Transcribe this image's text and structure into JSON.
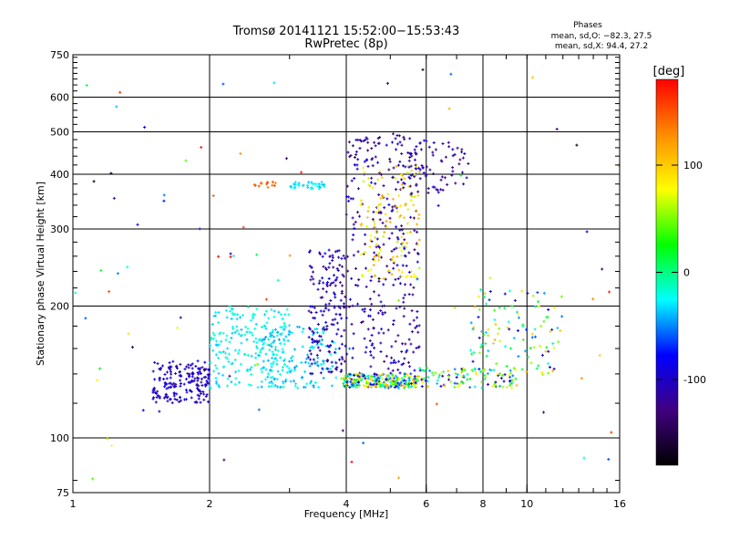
{
  "chart_data": {
    "type": "scatter",
    "title": "Tromsø 20141121 15:52:00−15:53:43",
    "subtitle": "RwPretec (8p)",
    "xlabel": "Frequency [MHz]",
    "ylabel": "Stationary phase Virtual Height [km]",
    "x_scale": "log",
    "y_scale": "log",
    "xlim": [
      1,
      16
    ],
    "ylim": [
      75,
      750
    ],
    "x_ticks": [
      1,
      2,
      4,
      6,
      8,
      10,
      16
    ],
    "y_ticks": [
      75,
      100,
      200,
      300,
      400,
      500,
      600,
      750
    ],
    "grid": true,
    "phase_title": "Phases",
    "phase_line_o": "mean, sd,O: −82.3, 27.5",
    "phase_line_x": "mean, sd,X:  94.4, 27.2",
    "colorbar": {
      "label": "[deg]",
      "range": [
        -180,
        180
      ],
      "ticks": [
        100,
        0,
        -100
      ],
      "colors": [
        "#ff0000",
        "#ff8c00",
        "#ffff00",
        "#00ff00",
        "#00ffff",
        "#0000ff",
        "#400080",
        "#000000"
      ]
    },
    "clusters": [
      {
        "x": [
          1.5,
          2.0
        ],
        "y": [
          120,
          150
        ],
        "n": 180,
        "phase": [
          -120,
          -80
        ]
      },
      {
        "x": [
          2.0,
          3.0
        ],
        "y": [
          130,
          200
        ],
        "n": 220,
        "phase": [
          -40,
          -10
        ]
      },
      {
        "x": [
          2.6,
          3.8
        ],
        "y": [
          130,
          180
        ],
        "n": 140,
        "phase": [
          -50,
          -20
        ]
      },
      {
        "x": [
          3.3,
          4.0
        ],
        "y": [
          140,
          270
        ],
        "n": 170,
        "phase": [
          -130,
          -80
        ]
      },
      {
        "x": [
          4.0,
          5.8
        ],
        "y": [
          140,
          500
        ],
        "n": 320,
        "phase": [
          -140,
          -80
        ]
      },
      {
        "x": [
          3.9,
          5.8
        ],
        "y": [
          130,
          140
        ],
        "n": 260,
        "phase": [
          -110,
          120
        ]
      },
      {
        "x": [
          4.3,
          5.8
        ],
        "y": [
          230,
          420
        ],
        "n": 130,
        "phase": [
          60,
          120
        ]
      },
      {
        "x": [
          5.5,
          7.5
        ],
        "y": [
          360,
          480
        ],
        "n": 70,
        "phase": [
          -130,
          -90
        ]
      },
      {
        "x": [
          5.8,
          9.5
        ],
        "y": [
          130,
          145
        ],
        "n": 110,
        "phase": [
          -120,
          110
        ]
      },
      {
        "x": [
          7.5,
          12
        ],
        "y": [
          140,
          220
        ],
        "n": 110,
        "phase": [
          -110,
          110
        ]
      },
      {
        "x": [
          3.0,
          3.6
        ],
        "y": [
          370,
          385
        ],
        "n": 35,
        "phase": [
          -40,
          -20
        ]
      },
      {
        "x": [
          2.5,
          2.8
        ],
        "y": [
          370,
          385
        ],
        "n": 14,
        "phase": [
          130,
          160
        ]
      },
      {
        "x": [
          1.0,
          16
        ],
        "y": [
          80,
          700
        ],
        "n": 90,
        "phase": [
          -180,
          180
        ]
      }
    ]
  }
}
